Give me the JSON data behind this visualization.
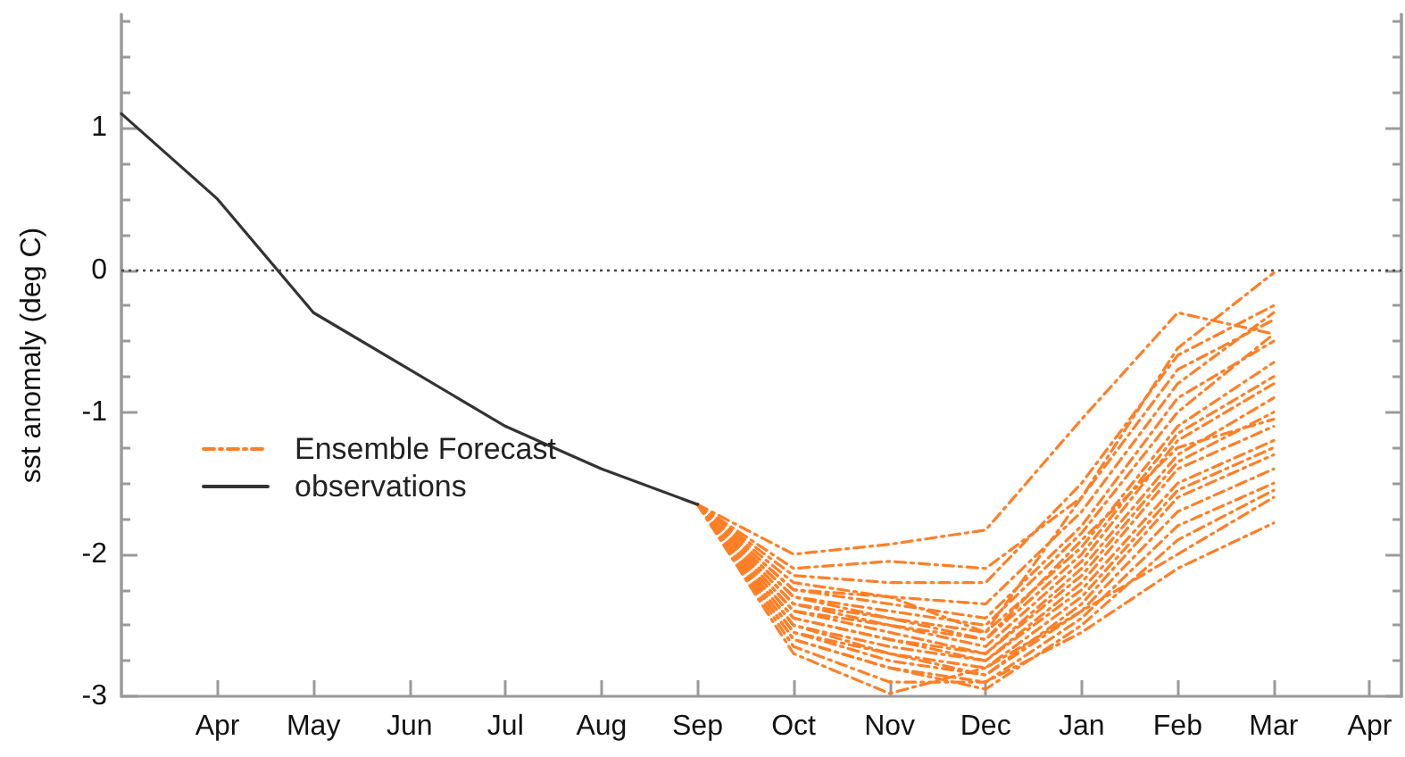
{
  "chart_data": {
    "type": "line",
    "ylabel": "sst anomaly (deg C)",
    "categories": [
      null,
      "Apr",
      "May",
      "Jun",
      "Jul",
      "Aug",
      "Sep",
      "Oct",
      "Nov",
      "Dec",
      "Jan",
      "Feb",
      "Mar",
      "Apr"
    ],
    "ylim": [
      -3,
      1.8
    ],
    "yticks": [
      -3,
      {
        "value": -2.75,
        "label": null
      },
      {
        "value": -2.5,
        "label": null
      },
      {
        "value": -2.25,
        "label": null
      },
      -2,
      {
        "value": -1.75,
        "label": null
      },
      {
        "value": -1.5,
        "label": null
      },
      {
        "value": -1.25,
        "label": null
      },
      -1,
      {
        "value": -0.75,
        "label": null
      },
      {
        "value": -0.5,
        "label": null
      },
      {
        "value": -0.25,
        "label": null
      },
      0,
      {
        "value": 0.25,
        "label": null
      },
      {
        "value": 0.5,
        "label": null
      },
      {
        "value": 0.75,
        "label": null
      },
      1,
      {
        "value": 1.25,
        "label": null
      },
      {
        "value": 1.5,
        "label": null
      },
      {
        "value": 1.75,
        "label": null
      }
    ],
    "legend": "left",
    "marker": "none",
    "ref_lines": [
      {
        "axis": "y",
        "value": 0,
        "color": "#444444",
        "line_style": "dotted"
      }
    ],
    "series": [
      {
        "name": "Ensemble Forecast",
        "color": "#ff7f27",
        "line_style": "dashed",
        "values": [
          null,
          null,
          null,
          null,
          null,
          null,
          -1.65,
          -2.0,
          -1.93,
          -1.83,
          -1.05,
          -0.3,
          -0.45,
          null
        ]
      },
      {
        "color": "#ff7f27",
        "line_style": "dashed",
        "values": [
          null,
          null,
          null,
          null,
          null,
          null,
          -1.65,
          -2.1,
          -2.05,
          -2.1,
          -1.6,
          -0.55,
          -0.02,
          null
        ]
      },
      {
        "color": "#ff7f27",
        "line_style": "dashed",
        "values": [
          null,
          null,
          null,
          null,
          null,
          null,
          -1.65,
          -2.15,
          -2.2,
          -2.2,
          -1.5,
          -0.6,
          -0.25,
          null
        ]
      },
      {
        "color": "#ff7f27",
        "line_style": "dashed",
        "values": [
          null,
          null,
          null,
          null,
          null,
          null,
          -1.65,
          -2.2,
          -2.3,
          -2.35,
          -1.7,
          -0.8,
          -0.3,
          null
        ]
      },
      {
        "color": "#ff7f27",
        "line_style": "dashed",
        "values": [
          null,
          null,
          null,
          null,
          null,
          null,
          -1.65,
          -2.25,
          -2.35,
          -2.45,
          -1.8,
          -0.9,
          -0.5,
          null
        ]
      },
      {
        "color": "#ff7f27",
        "line_style": "dashed",
        "values": [
          null,
          null,
          null,
          null,
          null,
          null,
          -1.65,
          -2.3,
          -2.4,
          -2.5,
          -1.85,
          -1.0,
          -0.45,
          null
        ]
      },
      {
        "color": "#ff7f27",
        "line_style": "dashed",
        "values": [
          null,
          null,
          null,
          null,
          null,
          null,
          -1.65,
          -2.3,
          -2.45,
          -2.55,
          -1.95,
          -1.1,
          -0.65,
          null
        ]
      },
      {
        "color": "#ff7f27",
        "line_style": "dashed",
        "values": [
          null,
          null,
          null,
          null,
          null,
          null,
          -1.65,
          -2.35,
          -2.5,
          -2.6,
          -2.0,
          -1.15,
          -0.75,
          null
        ]
      },
      {
        "color": "#ff7f27",
        "line_style": "dashed",
        "values": [
          null,
          null,
          null,
          null,
          null,
          null,
          -1.65,
          -2.4,
          -2.5,
          -2.65,
          -2.05,
          -1.2,
          -0.8,
          null
        ]
      },
      {
        "color": "#ff7f27",
        "line_style": "dashed",
        "values": [
          null,
          null,
          null,
          null,
          null,
          null,
          -1.65,
          -2.4,
          -2.55,
          -2.7,
          -2.1,
          -1.3,
          -0.9,
          null
        ]
      },
      {
        "color": "#ff7f27",
        "line_style": "dashed",
        "values": [
          null,
          null,
          null,
          null,
          null,
          null,
          -1.65,
          -2.45,
          -2.6,
          -2.7,
          -2.15,
          -1.35,
          -1.0,
          null
        ]
      },
      {
        "color": "#ff7f27",
        "line_style": "dashed",
        "values": [
          null,
          null,
          null,
          null,
          null,
          null,
          -1.65,
          -2.45,
          -2.6,
          -2.75,
          -2.2,
          -1.4,
          -1.1,
          null
        ]
      },
      {
        "color": "#ff7f27",
        "line_style": "dashed",
        "values": [
          null,
          null,
          null,
          null,
          null,
          null,
          -1.65,
          -2.5,
          -2.65,
          -2.75,
          -2.25,
          -1.5,
          -1.2,
          null
        ]
      },
      {
        "color": "#ff7f27",
        "line_style": "dashed",
        "values": [
          null,
          null,
          null,
          null,
          null,
          null,
          -1.65,
          -2.5,
          -2.7,
          -2.8,
          -2.3,
          -1.55,
          -1.25,
          null
        ]
      },
      {
        "color": "#ff7f27",
        "line_style": "dashed",
        "values": [
          null,
          null,
          null,
          null,
          null,
          null,
          -1.65,
          -2.55,
          -2.7,
          -2.85,
          -2.35,
          -1.6,
          -1.3,
          null
        ]
      },
      {
        "color": "#ff7f27",
        "line_style": "dashed",
        "values": [
          null,
          null,
          null,
          null,
          null,
          null,
          -1.65,
          -2.55,
          -2.75,
          -2.85,
          -2.4,
          -1.7,
          -1.4,
          null
        ]
      },
      {
        "color": "#ff7f27",
        "line_style": "dashed",
        "values": [
          null,
          null,
          null,
          null,
          null,
          null,
          -1.65,
          -2.6,
          -2.8,
          -2.9,
          -2.45,
          -1.8,
          -1.5,
          null
        ]
      },
      {
        "color": "#ff7f27",
        "line_style": "dashed",
        "values": [
          null,
          null,
          null,
          null,
          null,
          null,
          -1.65,
          -2.6,
          -2.8,
          -2.95,
          -2.5,
          -1.9,
          -1.55,
          null
        ]
      },
      {
        "color": "#ff7f27",
        "line_style": "dashed",
        "values": [
          null,
          null,
          null,
          null,
          null,
          null,
          -1.65,
          -2.65,
          -2.9,
          -2.9,
          -2.55,
          -2.1,
          -1.78,
          null
        ]
      },
      {
        "color": "#ff7f27",
        "line_style": "dashed",
        "values": [
          null,
          null,
          null,
          null,
          null,
          null,
          -1.65,
          -2.7,
          -2.98,
          -2.8,
          -2.4,
          -2.0,
          -1.6,
          null
        ]
      },
      {
        "color": "#ff7f27",
        "line_style": "dashed",
        "values": [
          null,
          null,
          null,
          null,
          null,
          null,
          -1.65,
          -2.25,
          -2.3,
          -2.55,
          -1.6,
          -0.7,
          -0.35,
          null
        ]
      },
      {
        "color": "#ff7f27",
        "line_style": "dashed",
        "values": [
          null,
          null,
          null,
          null,
          null,
          null,
          -1.65,
          -2.35,
          -2.45,
          -2.6,
          -1.9,
          -1.25,
          -1.05,
          null
        ]
      },
      {
        "name": "observations",
        "color": "#333333",
        "line_style": "solid",
        "values": [
          1.1,
          0.5,
          -0.3,
          -0.7,
          -1.1,
          -1.4,
          -1.65,
          null,
          null,
          null,
          null,
          null,
          null,
          null
        ]
      }
    ]
  }
}
